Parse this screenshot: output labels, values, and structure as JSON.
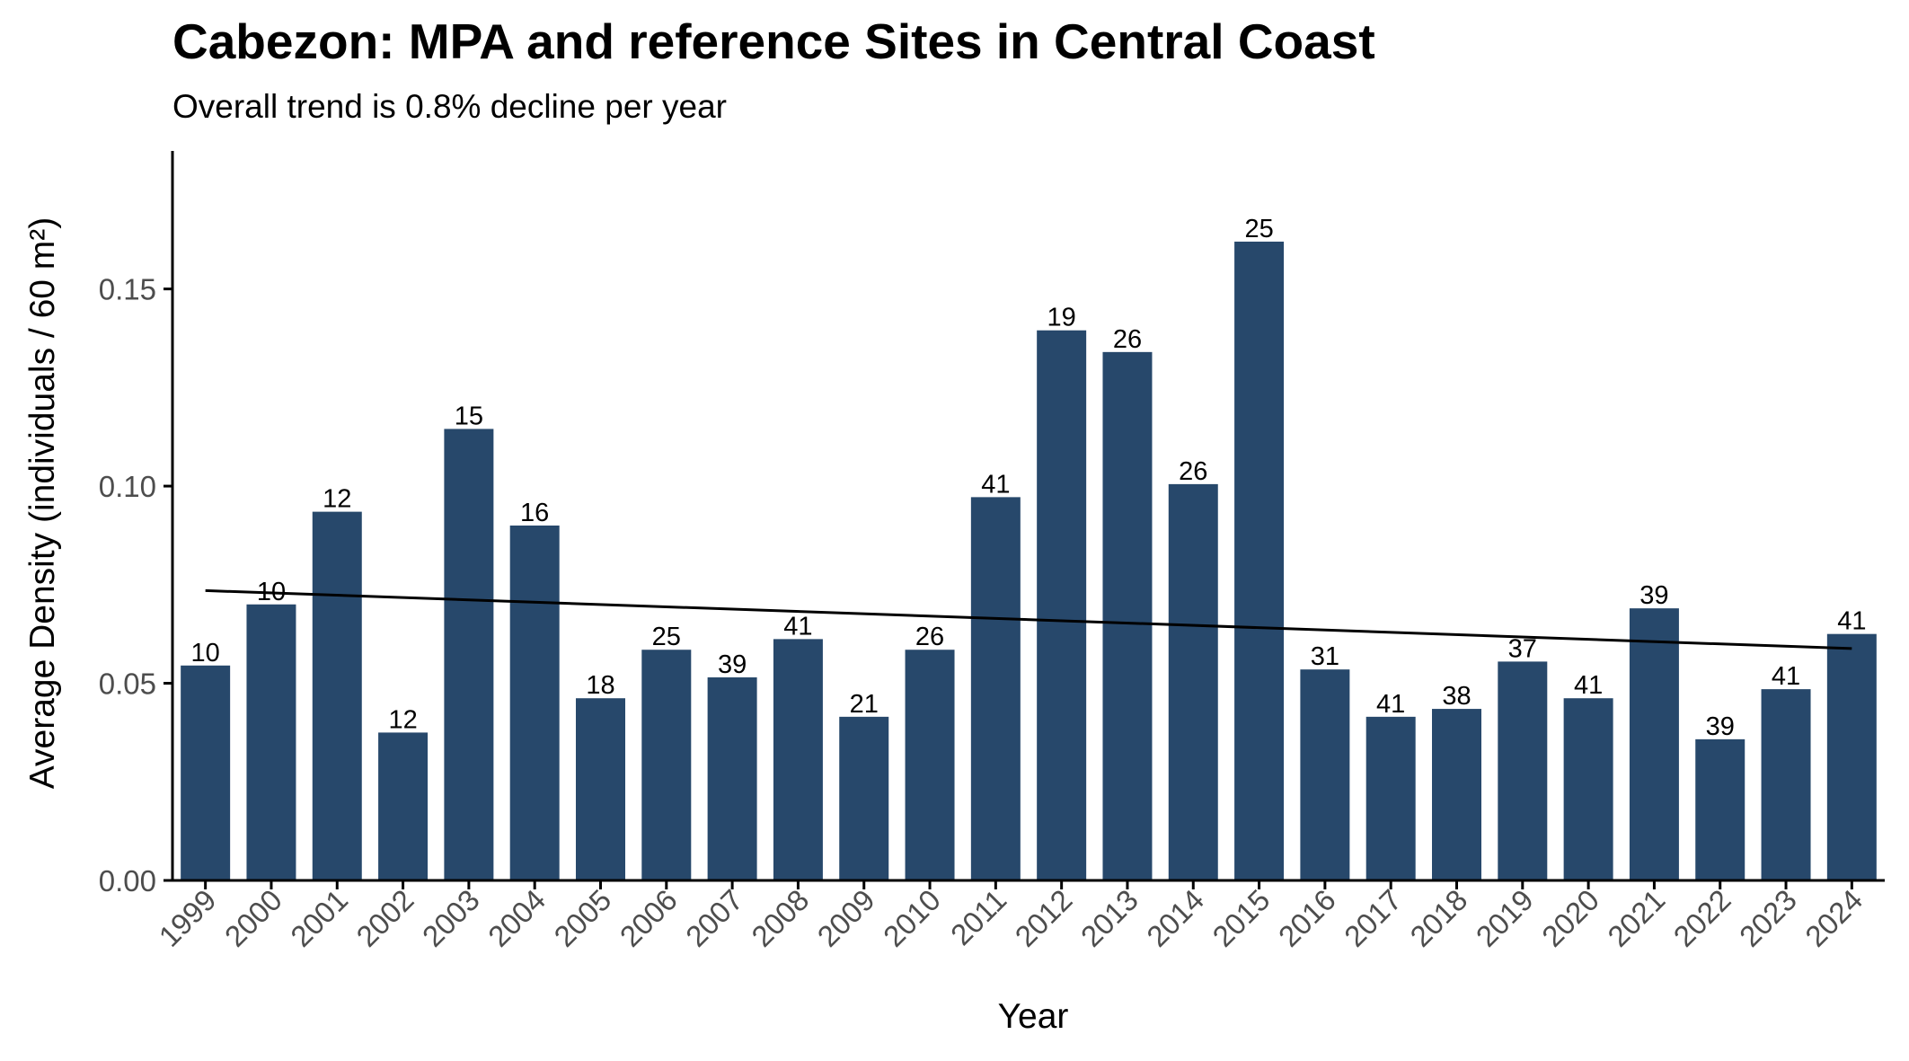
{
  "chart_data": {
    "type": "bar",
    "title": "Cabezon: MPA and reference Sites in Central Coast",
    "subtitle": "Overall trend is 0.8% decline per year",
    "xlabel": "Year",
    "ylabel": "Average Density (individuals / 60 m²)",
    "ylim": [
      0,
      0.185
    ],
    "yticks": [
      "0.00",
      "0.05",
      "0.10",
      "0.15"
    ],
    "ytick_values": [
      0,
      0.05,
      0.1,
      0.15
    ],
    "grid": false,
    "legend": "none",
    "categories": [
      "1999",
      "2000",
      "2001",
      "2002",
      "2003",
      "2004",
      "2005",
      "2006",
      "2007",
      "2008",
      "2009",
      "2010",
      "2011",
      "2012",
      "2013",
      "2014",
      "2015",
      "2016",
      "2017",
      "2018",
      "2019",
      "2020",
      "2021",
      "2022",
      "2023",
      "2024"
    ],
    "values": [
      0.0545,
      0.07,
      0.0935,
      0.0375,
      0.1145,
      0.09,
      0.0462,
      0.0585,
      0.0515,
      0.0612,
      0.0415,
      0.0585,
      0.0972,
      0.1395,
      0.134,
      0.1005,
      0.162,
      0.0535,
      0.0415,
      0.0435,
      0.0555,
      0.0462,
      0.069,
      0.0358,
      0.0485,
      0.0625
    ],
    "bar_labels": [
      "10",
      "10",
      "12",
      "12",
      "15",
      "16",
      "18",
      "25",
      "39",
      "41",
      "21",
      "26",
      "41",
      "19",
      "26",
      "26",
      "25",
      "31",
      "41",
      "38",
      "37",
      "41",
      "39",
      "39",
      "41",
      "41"
    ],
    "trend_line": {
      "x": [
        "1999",
        "2024"
      ],
      "y": [
        0.0735,
        0.0588
      ]
    },
    "colors": {
      "bar": "#27486b",
      "trend": "#000000",
      "axis": "#000000",
      "tick_label": "#4d4d4d"
    }
  }
}
